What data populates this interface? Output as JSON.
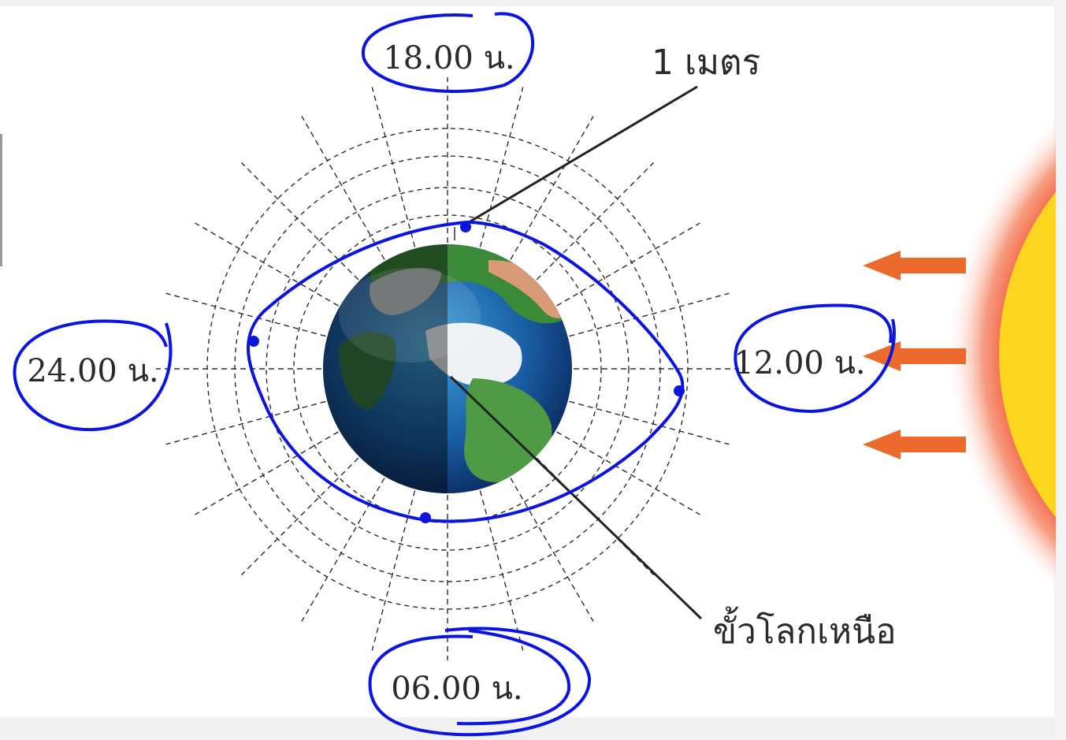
{
  "labels": {
    "time_top": "18.00 น.",
    "time_left": "24.00 น.",
    "time_right": "12.00 น.",
    "time_bottom": "06.00 น.",
    "distance": "1 เมตร",
    "north_pole": "ขั้วโลกเหนือ"
  },
  "colors": {
    "annotation": "#0c14e0",
    "arrow": "#ec6a2c",
    "sun_core": "#fbd51e",
    "sun_glow": "#f25a3c",
    "grid": "#2b2b2b",
    "leader": "#222222"
  },
  "icons": {
    "sun": "sun-icon",
    "earth": "earth-globe-icon",
    "arrow": "sunlight-arrow-icon"
  }
}
